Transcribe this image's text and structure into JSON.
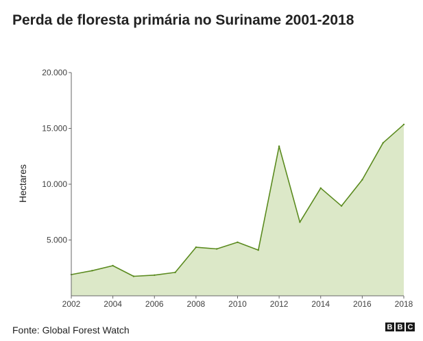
{
  "chart_data": {
    "type": "area",
    "title": "Perda de floresta primária no Suriname 2001-2018",
    "ylabel": "Hectares",
    "xlabel": "",
    "x": [
      2002,
      2003,
      2004,
      2005,
      2006,
      2007,
      2008,
      2009,
      2010,
      2011,
      2012,
      2013,
      2014,
      2015,
      2016,
      2017,
      2018
    ],
    "values": [
      1900,
      2250,
      2700,
      1750,
      1850,
      2100,
      4350,
      4200,
      4800,
      4100,
      13400,
      6600,
      9650,
      8050,
      10400,
      13700,
      15350
    ],
    "xticks": [
      2002,
      2004,
      2006,
      2008,
      2010,
      2012,
      2014,
      2016,
      2018
    ],
    "yticks": [
      5000,
      10000,
      15000,
      20000
    ],
    "ytick_labels": [
      "5.000",
      "10.000",
      "15.000",
      "20.000"
    ],
    "xlim": [
      2002,
      2018
    ],
    "ylim": [
      0,
      20000
    ],
    "grid": false,
    "colors": {
      "line": "#5a8a1e",
      "fill": "#dce8c8",
      "axis": "#666666"
    }
  },
  "footer": {
    "source": "Fonte: Global Forest Watch",
    "logo_letters": [
      "B",
      "B",
      "C"
    ]
  }
}
